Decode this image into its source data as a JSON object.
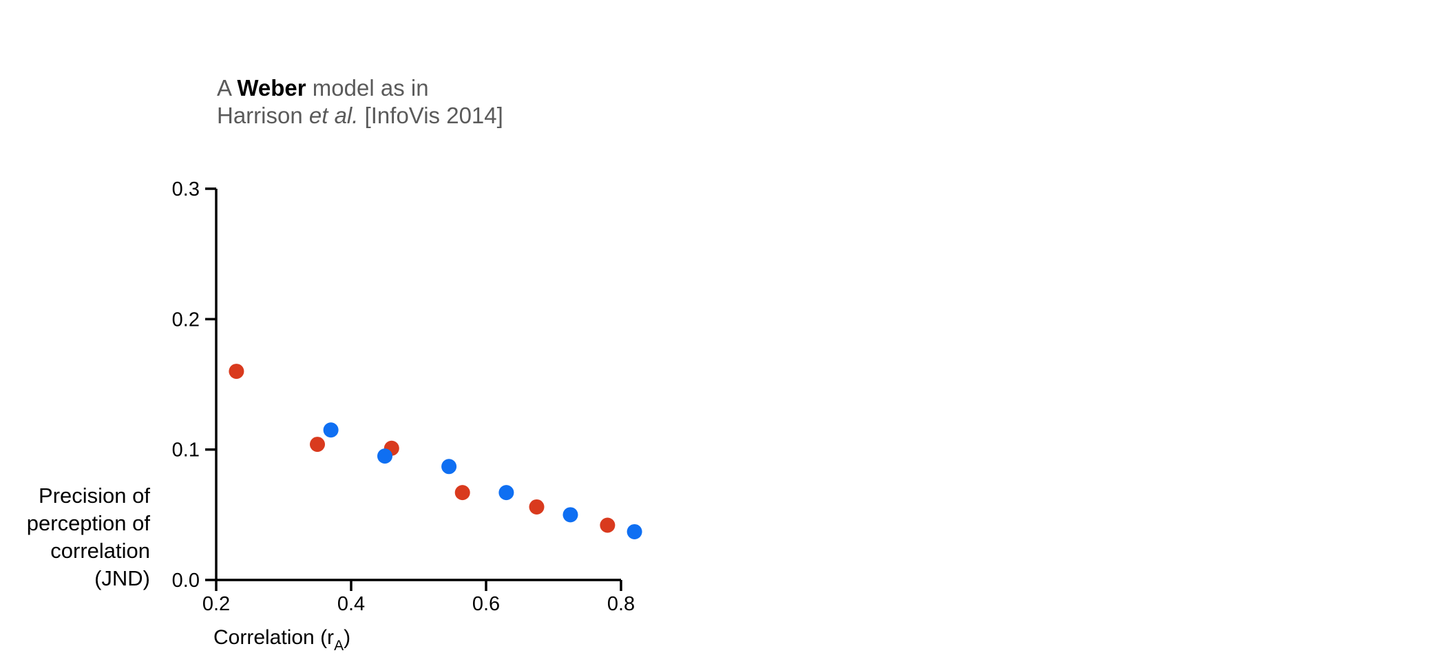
{
  "chart_data": {
    "type": "scatter",
    "title": {
      "pre": "A ",
      "bold": "Weber",
      "mid": " model as in",
      "line2_pre": "Harrison ",
      "line2_italic": "et al.",
      "line2_post": " [InfoVis 2014]"
    },
    "xlabel": {
      "main": "Correlation (r",
      "sub": "A",
      "close": ")"
    },
    "ylabel_lines": [
      "Precision of",
      "perception of",
      "correlation",
      "(JND)"
    ],
    "xlim": [
      0.2,
      0.8
    ],
    "ylim": [
      0.0,
      0.3
    ],
    "x_ticks": [
      {
        "value": 0.2,
        "label": "0.2"
      },
      {
        "value": 0.4,
        "label": "0.4"
      },
      {
        "value": 0.6,
        "label": "0.6"
      },
      {
        "value": 0.8,
        "label": "0.8"
      }
    ],
    "y_ticks": [
      {
        "value": 0.0,
        "label": "0.0"
      },
      {
        "value": 0.1,
        "label": "0.1"
      },
      {
        "value": 0.2,
        "label": "0.2"
      },
      {
        "value": 0.3,
        "label": "0.3"
      }
    ],
    "grid": false,
    "legend": "none",
    "series": [
      {
        "color": "#d93a1e",
        "points": [
          {
            "x": 0.23,
            "y": 0.16
          },
          {
            "x": 0.35,
            "y": 0.104
          },
          {
            "x": 0.46,
            "y": 0.101
          },
          {
            "x": 0.565,
            "y": 0.067
          },
          {
            "x": 0.675,
            "y": 0.056
          },
          {
            "x": 0.78,
            "y": 0.042
          }
        ]
      },
      {
        "color": "#0f6ff2",
        "points": [
          {
            "x": 0.37,
            "y": 0.115
          },
          {
            "x": 0.45,
            "y": 0.095
          },
          {
            "x": 0.545,
            "y": 0.087
          },
          {
            "x": 0.63,
            "y": 0.067
          },
          {
            "x": 0.725,
            "y": 0.05
          },
          {
            "x": 0.82,
            "y": 0.037
          }
        ]
      }
    ]
  }
}
